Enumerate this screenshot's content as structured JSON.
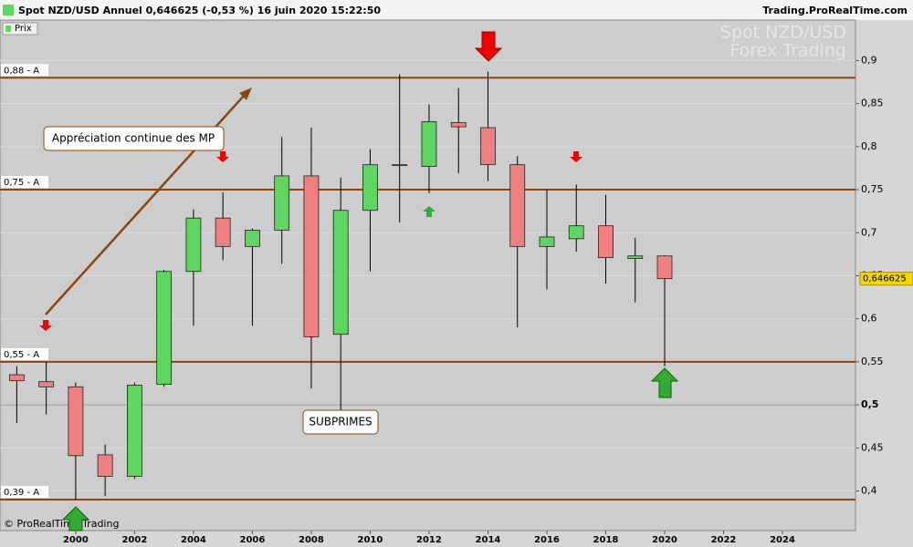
{
  "header": {
    "title": "Spot NZD/USD Annuel 0,646625 (-0,53 %) 16 juin 2020 15:22:50",
    "site": "Trading.ProRealTime.com",
    "legend": "Prix",
    "watermark": [
      "Spot NZD/USD",
      "Forex Trading"
    ],
    "footer": "© ProRealTime Trading"
  },
  "chart_data": {
    "type": "candlestick",
    "x": [
      1998,
      1999,
      2000,
      2001,
      2002,
      2003,
      2004,
      2005,
      2006,
      2007,
      2008,
      2009,
      2010,
      2011,
      2012,
      2013,
      2014,
      2015,
      2016,
      2017,
      2018,
      2019,
      2020
    ],
    "open": [
      0.535,
      0.527,
      0.521,
      0.442,
      0.417,
      0.524,
      0.655,
      0.717,
      0.684,
      0.703,
      0.766,
      0.582,
      0.726,
      0.779,
      0.777,
      0.828,
      0.822,
      0.779,
      0.684,
      0.693,
      0.708,
      0.67,
      0.673
    ],
    "high": [
      0.545,
      0.55,
      0.526,
      0.454,
      0.526,
      0.657,
      0.727,
      0.747,
      0.705,
      0.811,
      0.822,
      0.764,
      0.797,
      0.884,
      0.849,
      0.868,
      0.887,
      0.789,
      0.75,
      0.756,
      0.744,
      0.694,
      0.674
    ],
    "low": [
      0.479,
      0.489,
      0.39,
      0.394,
      0.414,
      0.521,
      0.592,
      0.668,
      0.592,
      0.664,
      0.519,
      0.491,
      0.655,
      0.712,
      0.746,
      0.769,
      0.76,
      0.59,
      0.634,
      0.678,
      0.641,
      0.619,
      0.545
    ],
    "close": [
      0.528,
      0.521,
      0.441,
      0.417,
      0.523,
      0.655,
      0.717,
      0.684,
      0.703,
      0.766,
      0.579,
      0.726,
      0.779,
      0.779,
      0.829,
      0.823,
      0.779,
      0.684,
      0.695,
      0.708,
      0.671,
      0.673,
      0.646625
    ],
    "up_color": "#5fd65f",
    "down_color": "#f08080",
    "xlim": [
      1997.43,
      2026.48
    ],
    "xticks": [
      2000,
      2002,
      2004,
      2006,
      2008,
      2010,
      2012,
      2014,
      2016,
      2018,
      2020,
      2022,
      2024
    ],
    "ylim": [
      0.354,
      0.947
    ],
    "yticks": [
      {
        "value": 0.4,
        "label": "0,4"
      },
      {
        "value": 0.45,
        "label": "0,45"
      },
      {
        "value": 0.5,
        "label": "0,5"
      },
      {
        "value": 0.55,
        "label": "0,55"
      },
      {
        "value": 0.6,
        "label": "0,6"
      },
      {
        "value": 0.65,
        "label": "0,65"
      },
      {
        "value": 0.7,
        "label": "0,7"
      },
      {
        "value": 0.75,
        "label": "0,75"
      },
      {
        "value": 0.8,
        "label": "0,8"
      },
      {
        "value": 0.85,
        "label": "0,85"
      },
      {
        "value": 0.9,
        "label": "0,9"
      }
    ],
    "levels": [
      {
        "value": 0.88,
        "label": "0,88 - A"
      },
      {
        "value": 0.75,
        "label": "0,75 - A"
      },
      {
        "value": 0.55,
        "label": "0,55 - A"
      },
      {
        "value": 0.39,
        "label": "0,39 - A"
      }
    ],
    "level_color": "#8b4513",
    "last_price": {
      "value": 0.646625,
      "label": "0,646625"
    },
    "annotations": [
      "Appréciation continue des MP",
      "SUBPRIMES"
    ]
  }
}
